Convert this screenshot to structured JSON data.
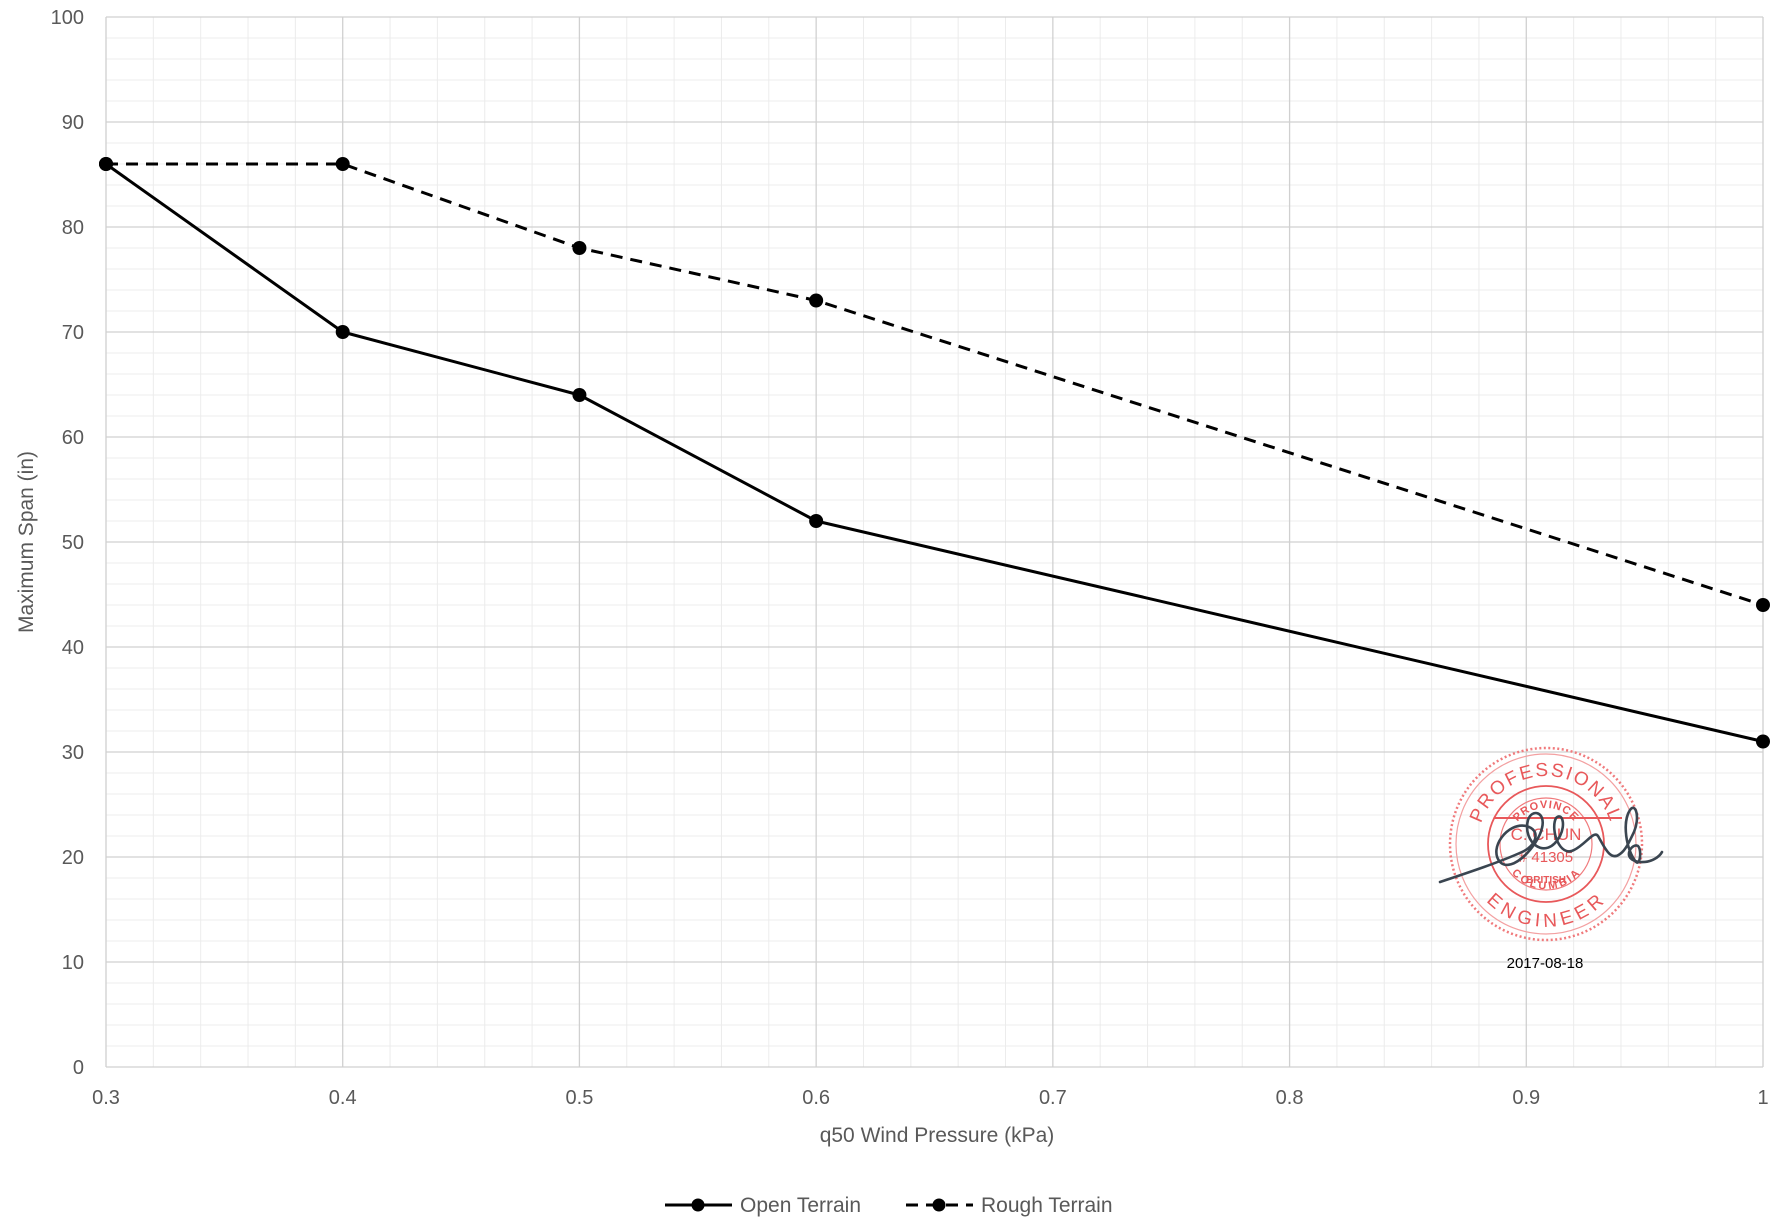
{
  "chart_data": {
    "type": "line",
    "title": "",
    "xlabel": "q50 Wind Pressure (kPa)",
    "ylabel": "Maximum Span (in)",
    "xlim": [
      0.3,
      1.0
    ],
    "ylim": [
      0,
      100
    ],
    "x_ticks": [
      "0.3",
      "0.4",
      "0.5",
      "0.6",
      "0.7",
      "0.8",
      "0.9",
      "1"
    ],
    "y_ticks": [
      "0",
      "10",
      "20",
      "30",
      "40",
      "50",
      "60",
      "70",
      "80",
      "90",
      "100"
    ],
    "grid": true,
    "legend_position": "bottom",
    "series": [
      {
        "name": "Open Terrain",
        "line_style": "solid",
        "color": "#000000",
        "x": [
          0.3,
          0.4,
          0.5,
          0.6,
          1.0
        ],
        "y": [
          86,
          70,
          64,
          52,
          31
        ]
      },
      {
        "name": "Rough Terrain",
        "line_style": "dashed",
        "color": "#000000",
        "x": [
          0.3,
          0.4,
          0.5,
          0.6,
          1.0
        ],
        "y": [
          86,
          86,
          78,
          73,
          44
        ]
      }
    ]
  },
  "stamp": {
    "top_text": "PROFESSIONAL",
    "province_text": "PROVINCE",
    "name": "C. CHUN",
    "number": "# 41305",
    "region_1": "BRITISH",
    "region_2": "COLUMBIA",
    "bottom_text": "ENGINEER",
    "date": "2017-08-18",
    "color": "#e8585a"
  }
}
